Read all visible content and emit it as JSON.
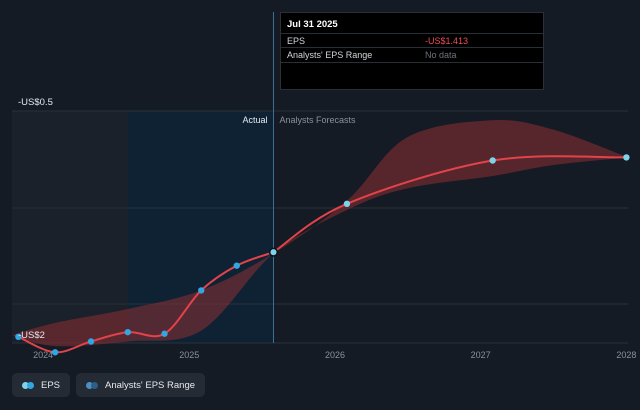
{
  "chart_data": {
    "type": "line",
    "y_top_label": "-US$0.5",
    "y_bottom_label": "-US$2",
    "ylim": [
      -2,
      -0.5
    ],
    "xlim": [
      "2023-10-15",
      "2028-01-05"
    ],
    "x_ticks": [
      "2024",
      "2025",
      "2026",
      "2027",
      "2028"
    ],
    "divider_labels": {
      "actual": "Actual",
      "forecast": "Analysts Forecasts"
    },
    "series": [
      {
        "name": "EPS",
        "type": "actual",
        "x": [
          "2023-10-31",
          "2024-01-31",
          "2024-04-30",
          "2024-07-31",
          "2024-10-31",
          "2025-01-31",
          "2025-04-30",
          "2025-07-31"
        ],
        "y": [
          -1.96,
          -2.06,
          -1.99,
          -1.93,
          -1.94,
          -1.66,
          -1.5,
          -1.413
        ]
      },
      {
        "name": "EPS",
        "type": "forecast",
        "x": [
          "2025-07-31",
          "2026-01-31",
          "2027-01-31",
          "2028-01-01"
        ],
        "y": [
          -1.413,
          -1.1,
          -0.82,
          -0.8
        ]
      }
    ],
    "range_band": {
      "name": "Analysts' EPS Range",
      "x": [
        "2023-10-15",
        "2024-01-31",
        "2024-07-31",
        "2025-01-31",
        "2025-07-31",
        "2026-01-31",
        "2026-07-01",
        "2027-01-31",
        "2027-07-01",
        "2028-01-05"
      ],
      "hi": [
        -1.95,
        -1.87,
        -1.78,
        -1.66,
        -1.42,
        -1.08,
        -0.67,
        -0.56,
        -0.62,
        -0.8
      ],
      "lo": [
        -1.95,
        -2.02,
        -1.99,
        -1.92,
        -1.42,
        -1.14,
        -1.0,
        -0.92,
        -0.85,
        -0.8
      ]
    },
    "highlight_date": "2025-07-31"
  },
  "tooltip": {
    "date": "Jul 31 2025",
    "rows": [
      {
        "label": "EPS",
        "value": "-US$1.413"
      },
      {
        "label": "Analysts' EPS Range",
        "value": "No data"
      }
    ]
  },
  "legend": {
    "eps_label": "EPS",
    "range_label": "Analysts' EPS Range"
  },
  "colors": {
    "background": "#151b24",
    "actual_shade": "#1b212a",
    "highlight_shade": "#0f2234",
    "line": "#e2434a",
    "band": "#8c2f33",
    "dot": "#32a6e0",
    "dot_light": "#7ed2ea",
    "grid": "#2a3039",
    "text": "#e6e8ec",
    "muted": "#8b9098"
  }
}
